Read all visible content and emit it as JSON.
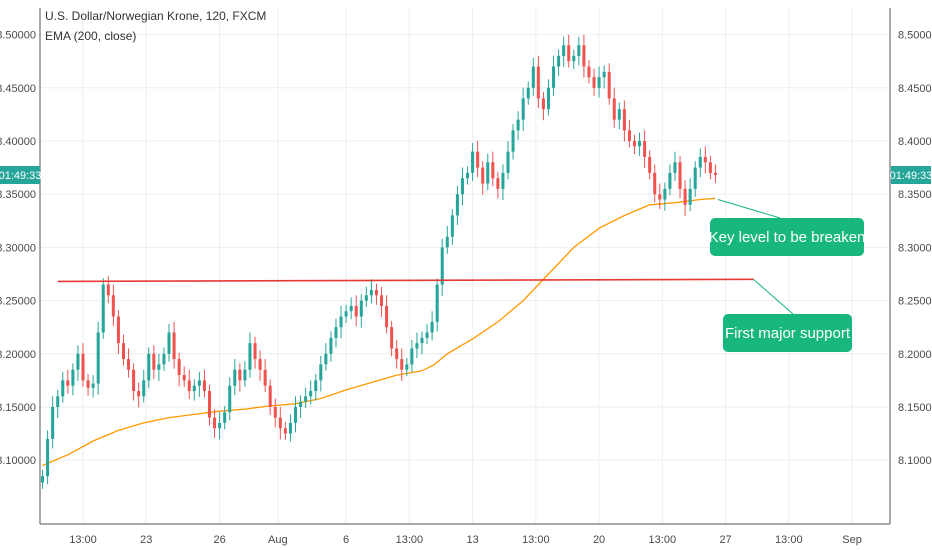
{
  "chart_data": {
    "type": "candlestick",
    "title": "U.S. Dollar/Norwegian Krone, 120, FXCM",
    "indicator_label": "EMA (200, close)",
    "current_price_tag": "01:49:33",
    "y_ticks": [
      8.1,
      8.15,
      8.2,
      8.25,
      8.3,
      8.35,
      8.4,
      8.45,
      8.5
    ],
    "y_tick_labels": [
      "8.10000",
      "8.15000",
      "8.20000",
      "8.25000",
      "8.30000",
      "8.35000",
      "8.40000",
      "8.45000",
      "8.50000"
    ],
    "ylim": [
      8.04,
      8.525
    ],
    "x_tick_labels": [
      "13:00",
      "23",
      "26",
      "Aug",
      "6",
      "13:00",
      "13",
      "13:00",
      "20",
      "13:00",
      "27",
      "13:00",
      "Sep"
    ],
    "x_tick_positions": [
      16,
      41,
      70,
      93,
      120,
      145,
      170,
      195,
      220,
      245,
      270,
      295,
      320
    ],
    "x_range": [
      -1,
      335
    ],
    "close_path": [
      [
        0,
        8.085
      ],
      [
        2,
        8.12
      ],
      [
        4,
        8.15
      ],
      [
        6,
        8.16
      ],
      [
        8,
        8.175
      ],
      [
        10,
        8.17
      ],
      [
        12,
        8.185
      ],
      [
        14,
        8.2
      ],
      [
        16,
        8.175
      ],
      [
        18,
        8.168
      ],
      [
        20,
        8.172
      ],
      [
        22,
        8.22
      ],
      [
        24,
        8.265
      ],
      [
        26,
        8.255
      ],
      [
        28,
        8.235
      ],
      [
        30,
        8.21
      ],
      [
        32,
        8.195
      ],
      [
        34,
        8.185
      ],
      [
        36,
        8.165
      ],
      [
        38,
        8.16
      ],
      [
        40,
        8.175
      ],
      [
        42,
        8.2
      ],
      [
        44,
        8.185
      ],
      [
        46,
        8.19
      ],
      [
        48,
        8.2
      ],
      [
        50,
        8.22
      ],
      [
        52,
        8.195
      ],
      [
        54,
        8.18
      ],
      [
        56,
        8.175
      ],
      [
        58,
        8.165
      ],
      [
        60,
        8.17
      ],
      [
        62,
        8.175
      ],
      [
        64,
        8.165
      ],
      [
        66,
        8.14
      ],
      [
        68,
        8.13
      ],
      [
        70,
        8.135
      ],
      [
        72,
        8.145
      ],
      [
        74,
        8.17
      ],
      [
        76,
        8.185
      ],
      [
        78,
        8.175
      ],
      [
        80,
        8.185
      ],
      [
        82,
        8.21
      ],
      [
        84,
        8.195
      ],
      [
        86,
        8.185
      ],
      [
        88,
        8.17
      ],
      [
        90,
        8.15
      ],
      [
        92,
        8.14
      ],
      [
        94,
        8.13
      ],
      [
        96,
        8.125
      ],
      [
        98,
        8.135
      ],
      [
        100,
        8.15
      ],
      [
        102,
        8.155
      ],
      [
        104,
        8.16
      ],
      [
        106,
        8.165
      ],
      [
        108,
        8.175
      ],
      [
        110,
        8.19
      ],
      [
        112,
        8.2
      ],
      [
        114,
        8.215
      ],
      [
        116,
        8.225
      ],
      [
        118,
        8.235
      ],
      [
        120,
        8.24
      ],
      [
        122,
        8.245
      ],
      [
        124,
        8.235
      ],
      [
        126,
        8.25
      ],
      [
        128,
        8.255
      ],
      [
        130,
        8.26
      ],
      [
        132,
        8.255
      ],
      [
        134,
        8.245
      ],
      [
        136,
        8.225
      ],
      [
        138,
        8.205
      ],
      [
        140,
        8.195
      ],
      [
        142,
        8.185
      ],
      [
        144,
        8.19
      ],
      [
        146,
        8.205
      ],
      [
        148,
        8.21
      ],
      [
        150,
        8.215
      ],
      [
        152,
        8.22
      ],
      [
        154,
        8.23
      ],
      [
        156,
        8.265
      ],
      [
        158,
        8.3
      ],
      [
        160,
        8.31
      ],
      [
        162,
        8.33
      ],
      [
        164,
        8.35
      ],
      [
        166,
        8.365
      ],
      [
        168,
        8.37
      ],
      [
        170,
        8.39
      ],
      [
        172,
        8.375
      ],
      [
        174,
        8.36
      ],
      [
        176,
        8.38
      ],
      [
        178,
        8.365
      ],
      [
        180,
        8.355
      ],
      [
        182,
        8.37
      ],
      [
        184,
        8.39
      ],
      [
        186,
        8.41
      ],
      [
        188,
        8.42
      ],
      [
        190,
        8.44
      ],
      [
        192,
        8.45
      ],
      [
        194,
        8.47
      ],
      [
        196,
        8.44
      ],
      [
        198,
        8.43
      ],
      [
        200,
        8.45
      ],
      [
        202,
        8.47
      ],
      [
        204,
        8.48
      ],
      [
        206,
        8.49
      ],
      [
        208,
        8.475
      ],
      [
        210,
        8.48
      ],
      [
        212,
        8.49
      ],
      [
        214,
        8.47
      ],
      [
        216,
        8.46
      ],
      [
        218,
        8.45
      ],
      [
        220,
        8.46
      ],
      [
        222,
        8.465
      ],
      [
        224,
        8.44
      ],
      [
        226,
        8.42
      ],
      [
        228,
        8.43
      ],
      [
        230,
        8.41
      ],
      [
        232,
        8.4
      ],
      [
        234,
        8.395
      ],
      [
        236,
        8.4
      ],
      [
        238,
        8.385
      ],
      [
        240,
        8.37
      ],
      [
        242,
        8.35
      ],
      [
        244,
        8.345
      ],
      [
        246,
        8.355
      ],
      [
        248,
        8.37
      ],
      [
        250,
        8.38
      ],
      [
        252,
        8.355
      ],
      [
        254,
        8.34
      ],
      [
        256,
        8.355
      ],
      [
        258,
        8.375
      ],
      [
        260,
        8.385
      ],
      [
        262,
        8.38
      ],
      [
        264,
        8.37
      ],
      [
        266,
        8.368
      ]
    ],
    "ema_path": [
      [
        0,
        8.095
      ],
      [
        10,
        8.105
      ],
      [
        20,
        8.118
      ],
      [
        30,
        8.128
      ],
      [
        40,
        8.135
      ],
      [
        50,
        8.14
      ],
      [
        60,
        8.143
      ],
      [
        70,
        8.146
      ],
      [
        80,
        8.148
      ],
      [
        90,
        8.151
      ],
      [
        100,
        8.153
      ],
      [
        110,
        8.158
      ],
      [
        120,
        8.166
      ],
      [
        130,
        8.173
      ],
      [
        140,
        8.18
      ],
      [
        150,
        8.184
      ],
      [
        155,
        8.19
      ],
      [
        160,
        8.2
      ],
      [
        170,
        8.214
      ],
      [
        180,
        8.23
      ],
      [
        190,
        8.25
      ],
      [
        200,
        8.275
      ],
      [
        210,
        8.3
      ],
      [
        220,
        8.318
      ],
      [
        230,
        8.33
      ],
      [
        240,
        8.34
      ],
      [
        250,
        8.342
      ],
      [
        260,
        8.345
      ],
      [
        266,
        8.346
      ]
    ],
    "support_line": {
      "x_start": 6,
      "x_end": 281,
      "y_start": 8.268,
      "y_end": 8.27
    },
    "annotations": [
      {
        "text": "Key level to be breaken",
        "pointer_x": 267,
        "pointer_y": 8.345
      },
      {
        "text": "First major support",
        "pointer_x": 281,
        "pointer_y": 8.27
      }
    ],
    "colors": {
      "up": "#26a69a",
      "down": "#ef5350",
      "ema": "#ff9800",
      "support": "#e53935",
      "callout": "#17b77d",
      "price_tag": "#26a69a",
      "grid": "#eeeeee",
      "axis": "#555555"
    },
    "grid": true
  }
}
